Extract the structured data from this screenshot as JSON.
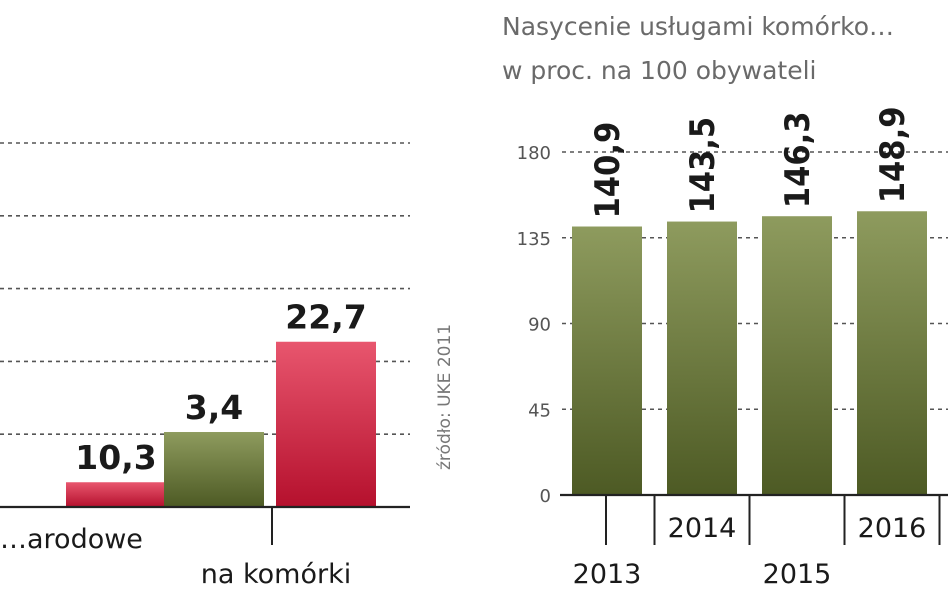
{
  "source": "źródło: UKE 2011",
  "colors": {
    "olive_dark": "#4d5a24",
    "olive_light": "#8e9b5e",
    "red_dark": "#b5102d",
    "red_light": "#e8566e",
    "grid": "#555555",
    "axis": "#222222"
  },
  "chart_data": [
    {
      "type": "bar",
      "title": "",
      "categories": [
        "…arodowe",
        "na komórki"
      ],
      "series": [
        {
          "values": [
            null,
            10.3
          ]
        },
        {
          "values": [
            3.4,
            22.7
          ]
        }
      ],
      "value_labels": [
        [
          "",
          "3,4"
        ],
        [
          "10,3",
          "22,7"
        ]
      ],
      "ylim": [
        0,
        50
      ],
      "grid": true,
      "note": "chart is cropped on the left; visible partial category label shown"
    },
    {
      "type": "bar",
      "title": "Nasycenie usługami komórko…",
      "subtitle": "w proc. na 100 obywateli",
      "categories": [
        "2013",
        "2014",
        "2015",
        "2016"
      ],
      "values": [
        140.9,
        143.5,
        146.3,
        148.9
      ],
      "value_labels": [
        "140,9",
        "143,5",
        "146,3",
        "148,9"
      ],
      "yticks": [
        "0",
        "45",
        "90",
        "135",
        "180"
      ],
      "ylim": [
        0,
        180
      ],
      "grid": true
    }
  ]
}
